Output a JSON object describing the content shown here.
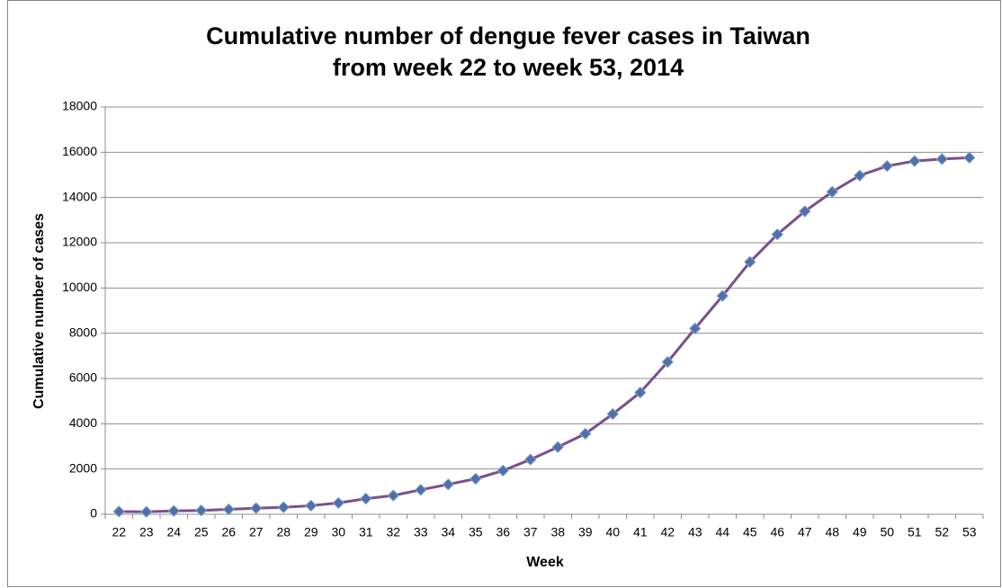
{
  "chart_data": {
    "type": "line",
    "title": [
      "Cumulative number of dengue fever cases in Taiwan",
      "from week 22 to week 53, 2014"
    ],
    "x_label": "Week",
    "y_label": "Cumulative number of cases",
    "categories": [
      22,
      23,
      24,
      25,
      26,
      27,
      28,
      29,
      30,
      31,
      32,
      33,
      34,
      35,
      36,
      37,
      38,
      39,
      40,
      41,
      42,
      43,
      44,
      45,
      46,
      47,
      48,
      49,
      50,
      51,
      52,
      53
    ],
    "series": [
      {
        "color": "#7b4f8c",
        "marker_color": "#4f6fa8",
        "values": [
          120,
          110,
          150,
          170,
          220,
          270,
          310,
          380,
          500,
          690,
          830,
          1080,
          1320,
          1570,
          1930,
          2420,
          2970,
          3560,
          4430,
          5380,
          6730,
          8210,
          9650,
          11150,
          12370,
          13390,
          14250,
          14970,
          15390,
          15610,
          15700,
          15760
        ]
      }
    ],
    "ylim": [
      0,
      18000
    ],
    "yticks": [
      0,
      2000,
      4000,
      6000,
      8000,
      10000,
      12000,
      14000,
      16000,
      18000
    ],
    "grid": true
  }
}
